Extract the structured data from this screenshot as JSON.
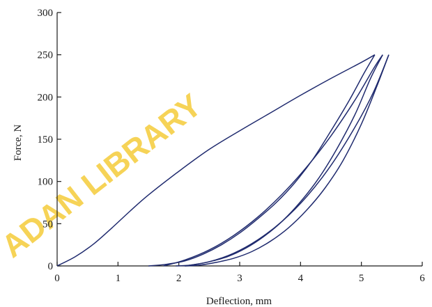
{
  "chart_data": {
    "type": "line",
    "title": "",
    "xlabel": "Deflection, mm",
    "ylabel": "Force, N",
    "xlim": [
      0,
      6
    ],
    "ylim": [
      0,
      300
    ],
    "x_ticks": [
      0,
      1,
      2,
      3,
      4,
      5,
      6
    ],
    "y_ticks": [
      0,
      50,
      100,
      150,
      200,
      250,
      300
    ],
    "grid": false,
    "legend": "none",
    "line_color": "#1f2a6e",
    "series": [
      {
        "x": [
          0,
          0.3,
          0.6,
          0.9,
          1.2,
          1.5,
          2.0,
          2.5,
          3.0,
          3.5,
          4.0,
          4.5,
          5.0,
          5.22
        ],
        "y": [
          0,
          11,
          26,
          45,
          65,
          84,
          112,
          138,
          160,
          181,
          202,
          222,
          241,
          250
        ]
      },
      {
        "x": [
          5.22,
          5.05,
          4.8,
          4.5,
          4.2,
          3.9,
          3.6,
          3.3,
          3.0,
          2.7,
          2.4,
          2.1,
          1.8,
          1.5
        ],
        "y": [
          250,
          229,
          196,
          160,
          126,
          98,
          75,
          56,
          39,
          25,
          14,
          6,
          2,
          0
        ]
      },
      {
        "x": [
          1.75,
          2.1,
          2.5,
          2.9,
          3.3,
          3.7,
          4.1,
          4.5,
          4.9,
          5.22,
          5.35
        ],
        "y": [
          0,
          7,
          19,
          36,
          58,
          85,
          117,
          154,
          197,
          236,
          250
        ]
      },
      {
        "x": [
          5.35,
          5.15,
          4.9,
          4.6,
          4.3,
          4.0,
          3.7,
          3.4,
          3.1,
          2.8,
          2.5,
          2.2,
          1.95
        ],
        "y": [
          250,
          222,
          180,
          139,
          104,
          76,
          53,
          35,
          21,
          11,
          5,
          1,
          0
        ]
      },
      {
        "x": [
          2.1,
          2.5,
          2.9,
          3.3,
          3.7,
          4.1,
          4.5,
          4.9,
          5.2,
          5.45
        ],
        "y": [
          0,
          5,
          15,
          31,
          53,
          82,
          119,
          165,
          206,
          250
        ]
      },
      {
        "x": [
          5.45,
          5.25,
          5.0,
          4.7,
          4.4,
          4.1,
          3.8,
          3.5,
          3.2,
          2.9,
          2.6,
          2.35,
          2.1
        ],
        "y": [
          250,
          212,
          168,
          125,
          92,
          66,
          45,
          29,
          17,
          9,
          4,
          1,
          0
        ]
      }
    ]
  },
  "watermark": "ADAN LIBRARY"
}
